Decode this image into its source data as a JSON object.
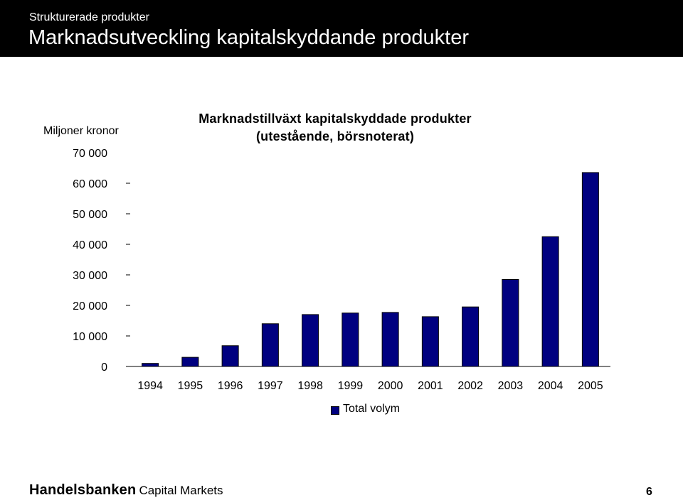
{
  "header": {
    "subtitle": "Strukturerade produkter",
    "title": "Marknadsutveckling kapitalskyddande produkter"
  },
  "chart_data": {
    "type": "bar",
    "title_lines": [
      "Marknadstillväxt kapitalskyddade produkter",
      "(utestående, börsnoterat)"
    ],
    "ylabel": "Miljoner kronor",
    "ylim": [
      0,
      70000
    ],
    "yticks": [
      0,
      10000,
      20000,
      30000,
      40000,
      50000,
      60000,
      70000
    ],
    "ytick_labels": [
      "0",
      "10 000",
      "20 000",
      "30 000",
      "40 000",
      "50 000",
      "60 000",
      "70 000"
    ],
    "categories": [
      "1994",
      "1995",
      "1996",
      "1997",
      "1998",
      "1999",
      "2000",
      "2001",
      "2002",
      "2003",
      "2004",
      "2005"
    ],
    "series": [
      {
        "name": "Total volym",
        "values": [
          1000,
          3000,
          6800,
          14000,
          17000,
          17500,
          17700,
          16300,
          19500,
          28500,
          42500,
          63500
        ]
      }
    ],
    "colors": {
      "bar_fill": "#000080",
      "bar_stroke": "#000000"
    },
    "grid": false,
    "legend_position": "bottom-center"
  },
  "footer": {
    "logo_main": "Handelsbanken",
    "logo_sub": "Capital Markets",
    "page_number": "6"
  }
}
